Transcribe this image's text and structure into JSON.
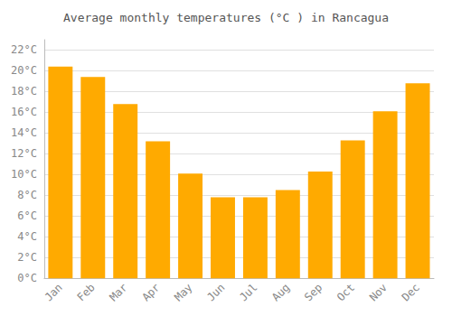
{
  "chart_data": {
    "type": "bar",
    "title": "Average monthly temperatures (°C ) in Rancagua",
    "categories": [
      "Jan",
      "Feb",
      "Mar",
      "Apr",
      "May",
      "Jun",
      "Jul",
      "Aug",
      "Sep",
      "Oct",
      "Nov",
      "Dec"
    ],
    "values": [
      20.4,
      19.4,
      16.8,
      13.2,
      10.1,
      7.8,
      7.8,
      8.5,
      10.3,
      13.3,
      16.1,
      18.8
    ],
    "color": "#FFAA00",
    "ylim": [
      0,
      23
    ],
    "yticks": [
      {
        "value": 0,
        "label": "0°C"
      },
      {
        "value": 2,
        "label": "2°C"
      },
      {
        "value": 4,
        "label": "4°C"
      },
      {
        "value": 6,
        "label": "6°C"
      },
      {
        "value": 8,
        "label": "8°C"
      },
      {
        "value": 10,
        "label": "10°C"
      },
      {
        "value": 12,
        "label": "12°C"
      },
      {
        "value": 14,
        "label": "14°C"
      },
      {
        "value": 16,
        "label": "16°C"
      },
      {
        "value": 18,
        "label": "18°C"
      },
      {
        "value": 20,
        "label": "20°C"
      },
      {
        "value": 22,
        "label": "22°C"
      }
    ],
    "grid": true
  }
}
